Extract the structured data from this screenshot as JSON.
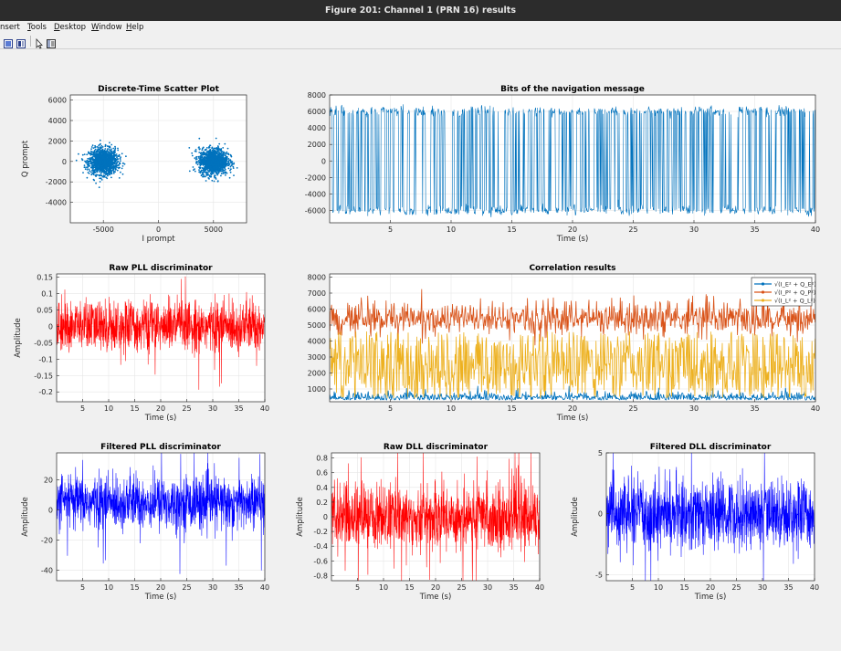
{
  "window": {
    "title": "Figure 201: Channel 1 (PRN 16) results"
  },
  "menu": [
    {
      "label": "nsert",
      "underline": ""
    },
    {
      "label": "Tools",
      "underline": "T"
    },
    {
      "label": "Desktop",
      "underline": "D"
    },
    {
      "label": "Window",
      "underline": "W"
    },
    {
      "label": "Help",
      "underline": "H"
    }
  ],
  "toolbar": {
    "icons": [
      "new-figure-icon",
      "insert-colorbar-icon",
      "pointer-icon",
      "property-editor-icon"
    ]
  },
  "colors": {
    "blue": "#0072bd",
    "orange": "#d95319",
    "yellow": "#edb120",
    "red": "#ff0000",
    "pure_blue": "#0000ff"
  },
  "chart_data": [
    {
      "id": "scatter",
      "type": "scatter",
      "title": "Discrete-Time Scatter Plot",
      "xlabel": "I prompt",
      "ylabel": "Q prompt",
      "xlim": [
        -8000,
        8000
      ],
      "ylim": [
        -6000,
        6500
      ],
      "xticks": [
        -5000,
        0,
        5000
      ],
      "xtick_labels": [
        "-5000",
        "0",
        "5000"
      ],
      "yticks": [
        -4000,
        -2000,
        0,
        2000,
        4000,
        6000
      ],
      "ytick_labels": [
        "-4000",
        "-2000",
        "0",
        "2000",
        "4000",
        "6000"
      ],
      "grid": true,
      "clusters": [
        {
          "center": [
            -5000,
            0
          ],
          "spread": [
            1300,
            700
          ]
        },
        {
          "center": [
            5000,
            0
          ],
          "spread": [
            1300,
            700
          ]
        }
      ],
      "color": "#0072bd"
    },
    {
      "id": "navbits",
      "type": "line",
      "title": "Bits of the navigation message",
      "xlabel": "Time (s)",
      "ylabel": "",
      "xlim": [
        0,
        40
      ],
      "ylim": [
        -7500,
        8000
      ],
      "xticks": [
        5,
        10,
        15,
        20,
        25,
        30,
        35,
        40
      ],
      "yticks": [
        -6000,
        -4000,
        -2000,
        0,
        2000,
        4000,
        6000,
        8000
      ],
      "ytick_labels": [
        "-6000",
        "-4000",
        "-2000",
        "0",
        "2000",
        "4000",
        "6000",
        "8000"
      ],
      "levels": [
        6000,
        -6000
      ],
      "color": "#0072bd"
    },
    {
      "id": "rawpll",
      "type": "line",
      "title": "Raw PLL discriminator",
      "xlabel": "Time (s)",
      "ylabel": "Amplitude",
      "xlim": [
        0,
        40
      ],
      "ylim": [
        -0.23,
        0.16
      ],
      "xticks": [
        5,
        10,
        15,
        20,
        25,
        30,
        35,
        40
      ],
      "yticks": [
        -0.2,
        -0.15,
        -0.1,
        -0.05,
        0,
        0.05,
        0.1,
        0.15
      ],
      "ytick_labels": [
        "-0.2",
        "-0.15",
        "-0.1",
        "-0.05",
        "0",
        "0.05",
        "0.1",
        "0.15"
      ],
      "noise_sigma": 0.04,
      "color": "#ff0000"
    },
    {
      "id": "correlation",
      "type": "line",
      "title": "Correlation results",
      "xlabel": "Time (s)",
      "ylabel": "",
      "xlim": [
        0,
        40
      ],
      "ylim": [
        200,
        8200
      ],
      "xticks": [
        5,
        10,
        15,
        20,
        25,
        30,
        35,
        40
      ],
      "yticks": [
        1000,
        2000,
        3000,
        4000,
        5000,
        6000,
        7000,
        8000
      ],
      "ytick_labels": [
        "1000",
        "2000",
        "3000",
        "4000",
        "5000",
        "6000",
        "7000",
        "8000"
      ],
      "legend_position": "top-right",
      "series": [
        {
          "name": "√(I_E² + Q_E²)",
          "mean": 300,
          "sigma": 200,
          "color": "#0072bd"
        },
        {
          "name": "√(I_P² + Q_P²)",
          "mean": 5400,
          "sigma": 700,
          "color": "#d95319"
        },
        {
          "name": "√(I_L² + Q_L²)",
          "mean": 2600,
          "sigma": 900,
          "color": "#edb120"
        }
      ]
    },
    {
      "id": "filtpll",
      "type": "line",
      "title": "Filtered PLL discriminator",
      "xlabel": "Time (s)",
      "ylabel": "Amplitude",
      "xlim": [
        0,
        40
      ],
      "ylim": [
        -47,
        38
      ],
      "xticks": [
        5,
        10,
        15,
        20,
        25,
        30,
        35,
        40
      ],
      "yticks": [
        -40,
        -20,
        0,
        20
      ],
      "ytick_labels": [
        "-40",
        "-20",
        "0",
        "20"
      ],
      "noise_mean": 5,
      "noise_sigma": 9,
      "color": "#0000ff"
    },
    {
      "id": "rawdll",
      "type": "line",
      "title": "Raw DLL discriminator",
      "xlabel": "Time (s)",
      "ylabel": "Amplitude",
      "xlim": [
        0,
        40
      ],
      "ylim": [
        -0.87,
        0.87
      ],
      "xticks": [
        5,
        10,
        15,
        20,
        25,
        30,
        35,
        40
      ],
      "yticks": [
        -0.8,
        -0.6,
        -0.4,
        -0.2,
        0,
        0.2,
        0.4,
        0.6,
        0.8
      ],
      "ytick_labels": [
        "-0.8",
        "-0.6",
        "-0.4",
        "-0.2",
        "0",
        "0.2",
        "0.4",
        "0.6",
        "0.8"
      ],
      "noise_sigma": 0.22,
      "color": "#ff0000"
    },
    {
      "id": "filtdll",
      "type": "line",
      "title": "Filtered DLL discriminator",
      "xlabel": "Time (s)",
      "ylabel": "Amplitude",
      "xlim": [
        0,
        40
      ],
      "ylim": [
        -5.5,
        5
      ],
      "xticks": [
        5,
        10,
        15,
        20,
        25,
        30,
        35,
        40
      ],
      "yticks": [
        -5,
        0,
        5
      ],
      "ytick_labels": [
        "-5",
        "0",
        "5"
      ],
      "noise_sigma": 1.4,
      "color": "#0000ff"
    }
  ]
}
